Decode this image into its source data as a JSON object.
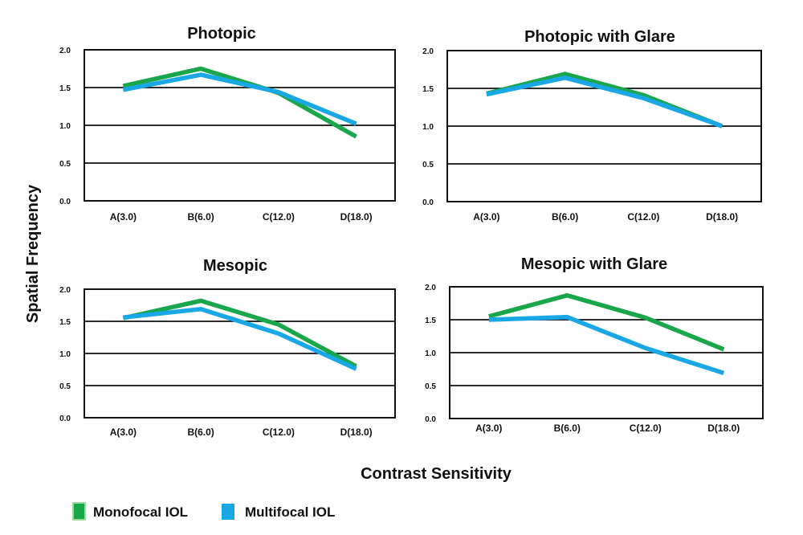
{
  "figure": {
    "ylabel": "Spatial Frequency",
    "xlabel": "Contrast Sensitivity"
  },
  "legend": [
    {
      "label": "Monofocal IOL",
      "color": "#1aa64a"
    },
    {
      "label": "Multifocal IOL",
      "color": "#1aa7e6"
    }
  ],
  "chart_data": [
    {
      "type": "line",
      "title": "Photopic",
      "categories": [
        "A(3.0)",
        "B(6.0)",
        "C(12.0)",
        "D(18.0)"
      ],
      "ylim": [
        0,
        2
      ],
      "yticks": [
        "0.0",
        "0.5",
        "1.0",
        "1.5",
        "2.0"
      ],
      "grid": true,
      "series": [
        {
          "name": "Monofocal IOL",
          "values": [
            1.52,
            1.75,
            1.43,
            0.85
          ]
        },
        {
          "name": "Multifocal IOL",
          "values": [
            1.47,
            1.67,
            1.44,
            1.02
          ]
        }
      ]
    },
    {
      "type": "line",
      "title": "Photopic with Glare",
      "categories": [
        "A(3.0)",
        "B(6.0)",
        "C(12.0)",
        "D(18.0)"
      ],
      "ylim": [
        0,
        2
      ],
      "yticks": [
        "0.0",
        "0.5",
        "1.0",
        "1.5",
        "2.0"
      ],
      "grid": true,
      "series": [
        {
          "name": "Monofocal IOL",
          "values": [
            1.43,
            1.69,
            1.41,
            1.0
          ]
        },
        {
          "name": "Multifocal IOL",
          "values": [
            1.42,
            1.64,
            1.37,
            1.0
          ]
        }
      ]
    },
    {
      "type": "line",
      "title": "Mesopic",
      "categories": [
        "A(3.0)",
        "B(6.0)",
        "C(12.0)",
        "D(18.0)"
      ],
      "ylim": [
        0,
        2
      ],
      "yticks": [
        "0.0",
        "0.5",
        "1.0",
        "1.5",
        "2.0"
      ],
      "grid": true,
      "series": [
        {
          "name": "Monofocal IOL",
          "values": [
            1.55,
            1.82,
            1.45,
            0.8
          ]
        },
        {
          "name": "Multifocal IOL",
          "values": [
            1.56,
            1.69,
            1.31,
            0.76
          ]
        }
      ]
    },
    {
      "type": "line",
      "title": "Mesopic with Glare",
      "categories": [
        "A(3.0)",
        "B(6.0)",
        "C(12.0)",
        "D(18.0)"
      ],
      "ylim": [
        0,
        2
      ],
      "yticks": [
        "0.0",
        "0.5",
        "1.0",
        "1.5",
        "2.0"
      ],
      "grid": true,
      "series": [
        {
          "name": "Monofocal IOL",
          "values": [
            1.55,
            1.87,
            1.53,
            1.05
          ]
        },
        {
          "name": "Multifocal IOL",
          "values": [
            1.5,
            1.54,
            1.07,
            0.69
          ]
        }
      ]
    }
  ]
}
